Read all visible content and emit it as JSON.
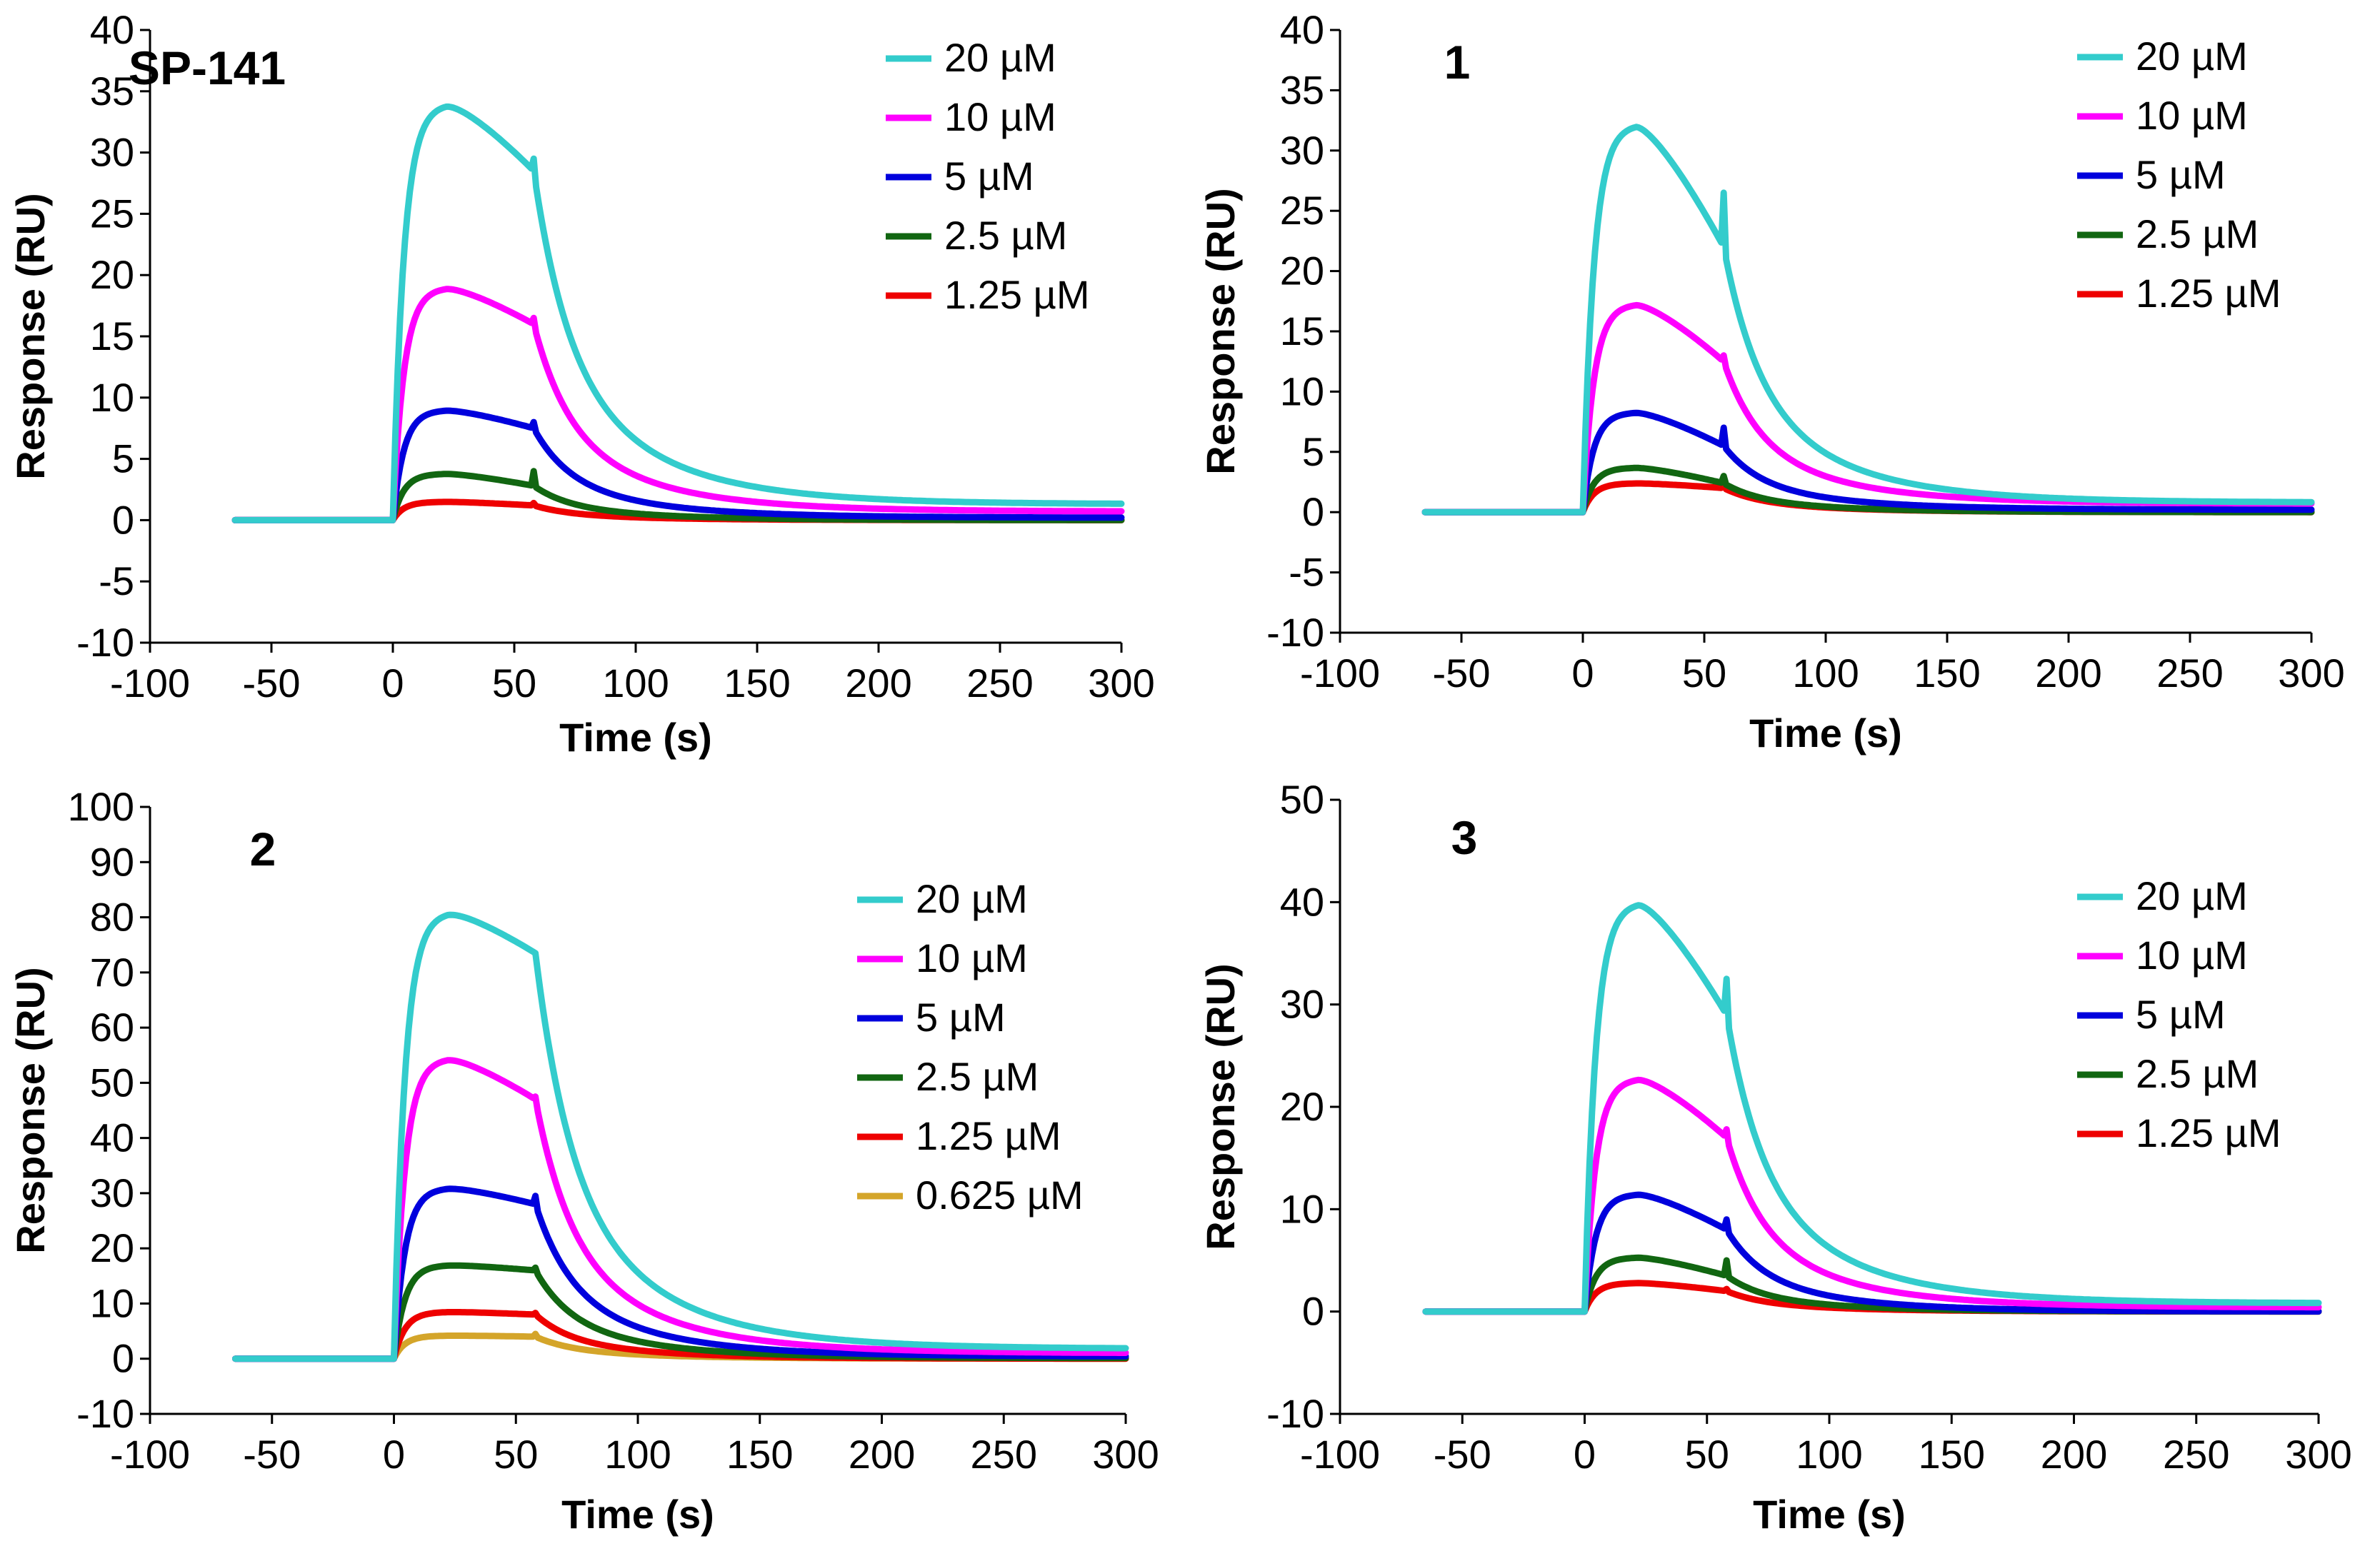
{
  "chart_data": [
    {
      "type": "line",
      "title": "SP-141",
      "xlabel": "Time (s)",
      "ylabel": "Response (RU)",
      "xlim": [
        -100,
        300
      ],
      "ylim": [
        -10,
        40
      ],
      "xticks": [
        -100,
        -50,
        0,
        50,
        100,
        150,
        200,
        250,
        300
      ],
      "yticks": [
        -10,
        -5,
        0,
        5,
        10,
        15,
        20,
        25,
        30,
        35,
        40
      ],
      "legend": "top-right",
      "series": [
        {
          "name": "20 µM",
          "color": "#33CCCC",
          "peak": 34,
          "end_assoc": 28.5,
          "spike": 29.5,
          "tail": 1.3
        },
        {
          "name": "10 µM",
          "color": "#FF00FF",
          "peak": 19,
          "end_assoc": 16,
          "spike": 16.5,
          "tail": 0.7
        },
        {
          "name": "5 µM",
          "color": "#0000DD",
          "peak": 9,
          "end_assoc": 7.5,
          "spike": 8,
          "tail": 0.2
        },
        {
          "name": "2.5 µM",
          "color": "#116611",
          "peak": 3.8,
          "end_assoc": 2.8,
          "spike": 4,
          "tail": 0
        },
        {
          "name": "1.25 µM",
          "color": "#EE0000",
          "peak": 1.5,
          "end_assoc": 1.2,
          "spike": 1.4,
          "tail": 0
        }
      ]
    },
    {
      "type": "line",
      "title": "1",
      "xlabel": "Time (s)",
      "ylabel": "Response (RU)",
      "xlim": [
        -100,
        300
      ],
      "ylim": [
        -10,
        40
      ],
      "xticks": [
        -100,
        -50,
        0,
        50,
        100,
        150,
        200,
        250,
        300
      ],
      "yticks": [
        -10,
        -5,
        0,
        5,
        10,
        15,
        20,
        25,
        30,
        35,
        40
      ],
      "legend": "top-right",
      "series": [
        {
          "name": "20 µM",
          "color": "#33CCCC",
          "peak": 32.2,
          "end_assoc": 22,
          "spike": 26.5,
          "tail": 0.8
        },
        {
          "name": "10 µM",
          "color": "#FF00FF",
          "peak": 17.3,
          "end_assoc": 12.5,
          "spike": 13,
          "tail": 0.7
        },
        {
          "name": "5 µM",
          "color": "#0000DD",
          "peak": 8.3,
          "end_assoc": 5.5,
          "spike": 7,
          "tail": 0.2
        },
        {
          "name": "2.5 µM",
          "color": "#116611",
          "peak": 3.7,
          "end_assoc": 2.4,
          "spike": 3,
          "tail": 0
        },
        {
          "name": "1.25 µM",
          "color": "#EE0000",
          "peak": 2.4,
          "end_assoc": 2,
          "spike": 2.2,
          "tail": 0
        }
      ]
    },
    {
      "type": "line",
      "title": "2",
      "xlabel": "Time (s)",
      "ylabel": "Response (RU)",
      "xlim": [
        -100,
        300
      ],
      "ylim": [
        -10,
        100
      ],
      "xticks": [
        -100,
        -50,
        0,
        50,
        100,
        150,
        200,
        250,
        300
      ],
      "yticks": [
        -10,
        0,
        10,
        20,
        30,
        40,
        50,
        60,
        70,
        80,
        90,
        100
      ],
      "legend": "right",
      "series": [
        {
          "name": "20 µM",
          "color": "#33CCCC",
          "peak": 81,
          "end_assoc": 73.5,
          "spike": 73.5,
          "tail": 1.8
        },
        {
          "name": "10 µM",
          "color": "#FF00FF",
          "peak": 54.5,
          "end_assoc": 47,
          "spike": 47.5,
          "tail": 1
        },
        {
          "name": "5 µM",
          "color": "#0000DD",
          "peak": 31,
          "end_assoc": 28,
          "spike": 29.5,
          "tail": 0.4
        },
        {
          "name": "2.5 µM",
          "color": "#116611",
          "peak": 17,
          "end_assoc": 16,
          "spike": 16.5,
          "tail": 0.1
        },
        {
          "name": "1.25 µM",
          "color": "#EE0000",
          "peak": 8.5,
          "end_assoc": 8,
          "spike": 8.3,
          "tail": 0
        },
        {
          "name": "0.625 µM",
          "color": "#D4A52A",
          "peak": 4.2,
          "end_assoc": 4,
          "spike": 4.5,
          "tail": 0
        }
      ]
    },
    {
      "type": "line",
      "title": "3",
      "xlabel": "Time (s)",
      "ylabel": "Response (RU)",
      "xlim": [
        -100,
        300
      ],
      "ylim": [
        -10,
        50
      ],
      "xticks": [
        -100,
        -50,
        0,
        50,
        100,
        150,
        200,
        250,
        300
      ],
      "yticks": [
        -10,
        0,
        10,
        20,
        30,
        40,
        50
      ],
      "legend": "top-right",
      "series": [
        {
          "name": "20 µM",
          "color": "#33CCCC",
          "peak": 40,
          "end_assoc": 29,
          "spike": 32.5,
          "tail": 0.8
        },
        {
          "name": "10 µM",
          "color": "#FF00FF",
          "peak": 22.8,
          "end_assoc": 17,
          "spike": 17.8,
          "tail": 0.4
        },
        {
          "name": "5 µM",
          "color": "#0000DD",
          "peak": 11.5,
          "end_assoc": 8,
          "spike": 9,
          "tail": 0
        },
        {
          "name": "2.5 µM",
          "color": "#116611",
          "peak": 5.3,
          "end_assoc": 3.5,
          "spike": 5,
          "tail": 0
        },
        {
          "name": "1.25 µM",
          "color": "#EE0000",
          "peak": 2.8,
          "end_assoc": 2,
          "spike": 2.2,
          "tail": 0
        }
      ]
    }
  ]
}
